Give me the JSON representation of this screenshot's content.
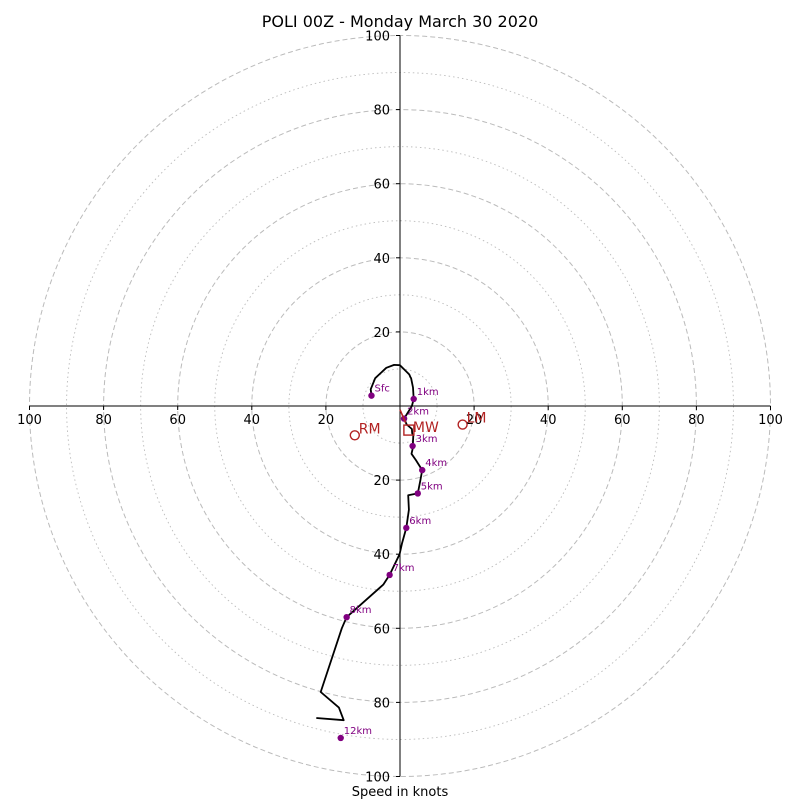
{
  "chart_data": {
    "type": "hodograph",
    "title": "POLI 00Z - Monday March 30 2020",
    "xlabel": "Speed in knots",
    "ylabel": "",
    "range": [
      -100,
      100
    ],
    "axis_tick_labels": [
      "100",
      "80",
      "60",
      "40",
      "20",
      "20",
      "40",
      "60",
      "80",
      "100"
    ],
    "rings_dashed": [
      20,
      40,
      60,
      80,
      100
    ],
    "rings_dotted": [
      10,
      30,
      50,
      70,
      90
    ],
    "grid": true,
    "colors": {
      "profile": "#000000",
      "levels": "#800080",
      "motion": "#b22222",
      "grid": "#bbbbbb",
      "axes": "#000000"
    },
    "profile_uv": [
      [
        -7.7,
        2.8
      ],
      [
        -7.9,
        4.5
      ],
      [
        -6.7,
        7.5
      ],
      [
        -3.7,
        10.3
      ],
      [
        -1.6,
        11.1
      ],
      [
        0,
        11.0
      ],
      [
        2.5,
        8.5
      ],
      [
        2.8,
        7.8
      ],
      [
        3.0,
        7.5
      ],
      [
        3.5,
        5.0
      ],
      [
        3.7,
        1.9
      ],
      [
        3.2,
        0
      ],
      [
        1.1,
        -3.4
      ],
      [
        1.8,
        -5.0
      ],
      [
        3.2,
        -6.2
      ],
      [
        3.3,
        -7.4
      ],
      [
        3.6,
        -8.0
      ],
      [
        3.4,
        -11.6
      ],
      [
        3.1,
        -12.9
      ],
      [
        4.3,
        -14.6
      ],
      [
        6.0,
        -17.3
      ],
      [
        5.5,
        -20.0
      ],
      [
        4.8,
        -23.6
      ],
      [
        2.2,
        -24.1
      ],
      [
        2.4,
        -28.0
      ],
      [
        1.7,
        -32.9
      ],
      [
        0.5,
        -37.2
      ],
      [
        -0.1,
        -40.0
      ],
      [
        -2.8,
        -45.6
      ],
      [
        -4.5,
        -48.2
      ],
      [
        -14.4,
        -57.0
      ],
      [
        -15.7,
        -60.0
      ],
      [
        -21.4,
        -77.2
      ],
      [
        -16.5,
        -81.4
      ],
      [
        -15.2,
        -84.8
      ],
      [
        -22.6,
        -84.2
      ]
    ],
    "levels": [
      {
        "label": "Sfc",
        "u": -7.7,
        "v": 2.8
      },
      {
        "label": "1km",
        "u": 3.7,
        "v": 1.9
      },
      {
        "label": "2km",
        "u": 1.1,
        "v": -3.4
      },
      {
        "label": "3km",
        "u": 3.4,
        "v": -10.8
      },
      {
        "label": "4km",
        "u": 6.0,
        "v": -17.3
      },
      {
        "label": "5km",
        "u": 4.8,
        "v": -23.6
      },
      {
        "label": "6km",
        "u": 1.7,
        "v": -32.9
      },
      {
        "label": "7km",
        "u": -2.8,
        "v": -45.6
      },
      {
        "label": "8km",
        "u": -14.4,
        "v": -57.0
      },
      {
        "label": "12km",
        "u": -16.0,
        "v": -89.6
      }
    ],
    "storm_motion": [
      {
        "label": "RM",
        "u": -12.2,
        "v": -7.9,
        "marker": "circle"
      },
      {
        "label": "LM",
        "u": 16.9,
        "v": -5.0,
        "marker": "circle"
      },
      {
        "label": "MW",
        "u": 2.4,
        "v": -6.5,
        "marker": "square"
      }
    ],
    "shear_vector": [
      [
        0,
        -1.0
      ],
      [
        1.5,
        -4.5
      ]
    ]
  }
}
